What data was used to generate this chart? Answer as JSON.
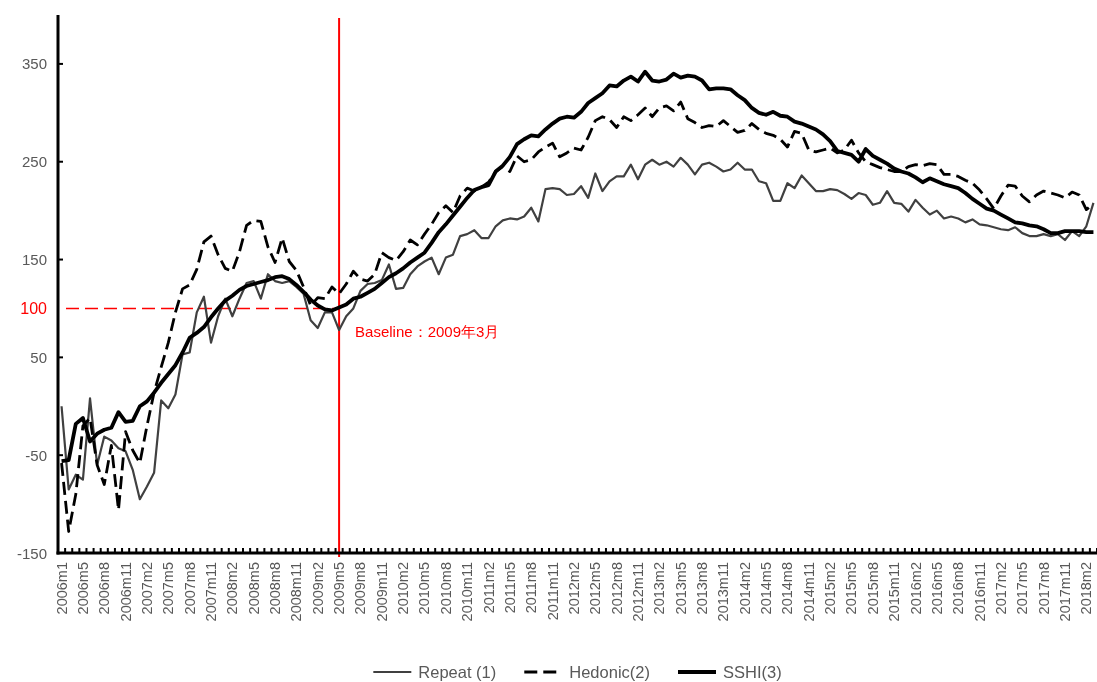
{
  "chart_data": {
    "type": "line",
    "categories": [
      "2006m1",
      null,
      null,
      "2006m5",
      null,
      null,
      "2006m8",
      null,
      null,
      "2006m11",
      null,
      null,
      "2007m2",
      null,
      null,
      "2007m5",
      null,
      null,
      "2007m8",
      null,
      null,
      "2007m11",
      null,
      null,
      "2008m2",
      null,
      null,
      "2008m5",
      null,
      null,
      "2008m8",
      null,
      null,
      "2008m11",
      null,
      null,
      "2009m2",
      null,
      null,
      "2009m5",
      null,
      null,
      "2009m8",
      null,
      null,
      "2009m11",
      null,
      null,
      "2010m2",
      null,
      null,
      "2010m5",
      null,
      null,
      "2010m8",
      null,
      null,
      "2010m11",
      null,
      null,
      "2011m2",
      null,
      null,
      "2011m5",
      null,
      null,
      "2011m8",
      null,
      null,
      "2011m11",
      null,
      null,
      "2012m2",
      null,
      null,
      "2012m5",
      null,
      null,
      "2012m8",
      null,
      null,
      "2012m11",
      null,
      null,
      "2013m2",
      null,
      null,
      "2013m5",
      null,
      null,
      "2013m8",
      null,
      null,
      "2013m11",
      null,
      null,
      "2014m2",
      null,
      null,
      "2014m5",
      null,
      null,
      "2014m8",
      null,
      null,
      "2014m11",
      null,
      null,
      "2015m2",
      null,
      null,
      "2015m5",
      null,
      null,
      "2015m8",
      null,
      null,
      "2015m11",
      null,
      null,
      "2016m2",
      null,
      null,
      "2016m5",
      null,
      null,
      "2016m8",
      null,
      null,
      "2016m11",
      null,
      null,
      "2017m2",
      null,
      null,
      "2017m5",
      null,
      null,
      "2017m8",
      null,
      null,
      "2017m11",
      null,
      null,
      "2018m2",
      null
    ],
    "series": [
      {
        "name": "Repeat (1)",
        "color": "#404040",
        "line_style": "solid",
        "values": [
          0,
          -85,
          -70,
          -75,
          8,
          -60,
          -31,
          -35,
          -43,
          -46,
          -65,
          -95,
          -82,
          -68,
          6,
          -2,
          12,
          53,
          55,
          96,
          112,
          65,
          92,
          110,
          92,
          110,
          126,
          128,
          110,
          135,
          128,
          126,
          128,
          122,
          115,
          88,
          80,
          96,
          96,
          78,
          92,
          100,
          118,
          125,
          126,
          129,
          145,
          120,
          121,
          135,
          143,
          148,
          152,
          135,
          152,
          155,
          174,
          176,
          180,
          172,
          172,
          184,
          190,
          192,
          191,
          194,
          203,
          189,
          222,
          223,
          222,
          216,
          217,
          225,
          213,
          238,
          220,
          230,
          235,
          235,
          247,
          232,
          247,
          252,
          247,
          250,
          245,
          254,
          247,
          237,
          247,
          249,
          245,
          240,
          242,
          249,
          242,
          242,
          230,
          228,
          210,
          210,
          228,
          223,
          236,
          228,
          220,
          220,
          222,
          221,
          217,
          212,
          218,
          216,
          206,
          208,
          220,
          208,
          207,
          199,
          211,
          203,
          196,
          200,
          192,
          194,
          192,
          188,
          191,
          186,
          185,
          183,
          181,
          180,
          183,
          177,
          174,
          174,
          176,
          174,
          176,
          170,
          179,
          174,
          184,
          208
        ]
      },
      {
        "name": "Hedonic(2)",
        "color": "#000000",
        "line_style": "dashed",
        "values": [
          -58,
          -128,
          -90,
          -20,
          -12,
          -60,
          -80,
          -40,
          -106,
          -26,
          -45,
          -58,
          -20,
          14,
          40,
          65,
          96,
          120,
          124,
          140,
          168,
          174,
          155,
          141,
          138,
          158,
          185,
          190,
          189,
          163,
          147,
          172,
          148,
          139,
          122,
          103,
          111,
          110,
          122,
          115,
          125,
          138,
          130,
          128,
          135,
          157,
          152,
          149,
          158,
          170,
          165,
          176,
          186,
          198,
          205,
          198,
          215,
          223,
          220,
          224,
          229,
          240,
          245,
          240,
          256,
          250,
          252,
          260,
          265,
          269,
          255,
          259,
          264,
          262,
          275,
          292,
          296,
          293,
          285,
          296,
          292,
          298,
          305,
          296,
          305,
          307,
          302,
          311,
          294,
          290,
          285,
          287,
          286,
          292,
          286,
          280,
          282,
          289,
          283,
          279,
          277,
          273,
          265,
          281,
          279,
          262,
          260,
          262,
          264,
          259,
          262,
          272,
          259,
          250,
          247,
          244,
          242,
          240,
          240,
          245,
          247,
          246,
          248,
          247,
          237,
          237,
          235,
          231,
          228,
          221,
          212,
          202,
          215,
          226,
          225,
          215,
          209,
          216,
          220,
          218,
          216,
          213,
          219,
          216,
          201,
          207
        ]
      },
      {
        "name": "SSHI(3)",
        "color": "#000000",
        "line_style": "solid",
        "values": [
          -56,
          -55,
          -18,
          -12,
          -36,
          -28,
          -24,
          -22,
          -6,
          -16,
          -15,
          0,
          5,
          14,
          24,
          33,
          42,
          55,
          70,
          75,
          81,
          91,
          100,
          108,
          113,
          119,
          123,
          125,
          127,
          129,
          132,
          133,
          130,
          124,
          117,
          109,
          103,
          99,
          98,
          101,
          104,
          110,
          112,
          116,
          120,
          126,
          132,
          136,
          141,
          147,
          152,
          157,
          167,
          178,
          186,
          195,
          204,
          213,
          221,
          224,
          226,
          240,
          246,
          255,
          268,
          273,
          277,
          276,
          283,
          289,
          294,
          296,
          295,
          301,
          310,
          315,
          320,
          328,
          327,
          333,
          337,
          332,
          342,
          333,
          332,
          334,
          340,
          336,
          338,
          337,
          333,
          324,
          325,
          325,
          324,
          318,
          313,
          305,
          300,
          298,
          301,
          297,
          296,
          291,
          289,
          286,
          283,
          278,
          271,
          261,
          259,
          257,
          250,
          263,
          256,
          252,
          248,
          243,
          240,
          238,
          234,
          229,
          233,
          230,
          227,
          225,
          223,
          218,
          212,
          207,
          202,
          200,
          196,
          192,
          188,
          187,
          185,
          184,
          181,
          177,
          177,
          179,
          179,
          179,
          178,
          178
        ]
      }
    ],
    "ylim": [
      -150,
      400
    ],
    "yticks": [
      -150,
      -50,
      50,
      150,
      250,
      350
    ],
    "ref_lines": [
      {
        "axis": "y",
        "value": 100,
        "label": "100",
        "color": "#ff0000",
        "line_style": "dashed"
      },
      {
        "axis": "x",
        "value": "2009m5",
        "label": "Baseline：2009年3月",
        "color": "#ff0000",
        "line_style": "solid"
      }
    ],
    "legend": "bottom"
  }
}
